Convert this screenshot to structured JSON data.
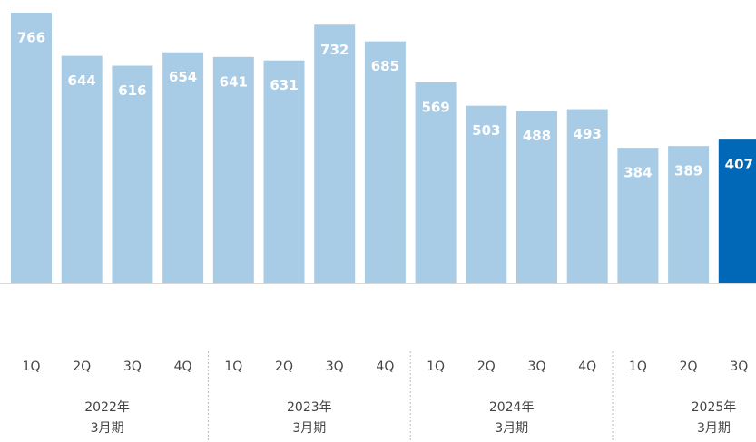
{
  "chart_data": {
    "type": "bar",
    "groups": [
      {
        "name": "2022年",
        "period": "3月期",
        "categories": [
          "1Q",
          "2Q",
          "3Q",
          "4Q"
        ]
      },
      {
        "name": "2023年",
        "period": "3月期",
        "categories": [
          "1Q",
          "2Q",
          "3Q",
          "4Q"
        ]
      },
      {
        "name": "2024年",
        "period": "3月期",
        "categories": [
          "1Q",
          "2Q",
          "3Q",
          "4Q"
        ]
      },
      {
        "name": "2025年",
        "period": "3月期",
        "categories": [
          "1Q",
          "2Q",
          "3Q"
        ]
      }
    ],
    "values": [
      766,
      644,
      616,
      654,
      641,
      631,
      732,
      685,
      569,
      503,
      488,
      493,
      384,
      389,
      407
    ],
    "colors": [
      "#a9cce6",
      "#a9cce6",
      "#a9cce6",
      "#a9cce6",
      "#a9cce6",
      "#a9cce6",
      "#a9cce6",
      "#a9cce6",
      "#a9cce6",
      "#a9cce6",
      "#a9cce6",
      "#a9cce6",
      "#a9cce6",
      "#a9cce6",
      "#0068b7"
    ],
    "ylim": [
      0,
      766
    ]
  }
}
